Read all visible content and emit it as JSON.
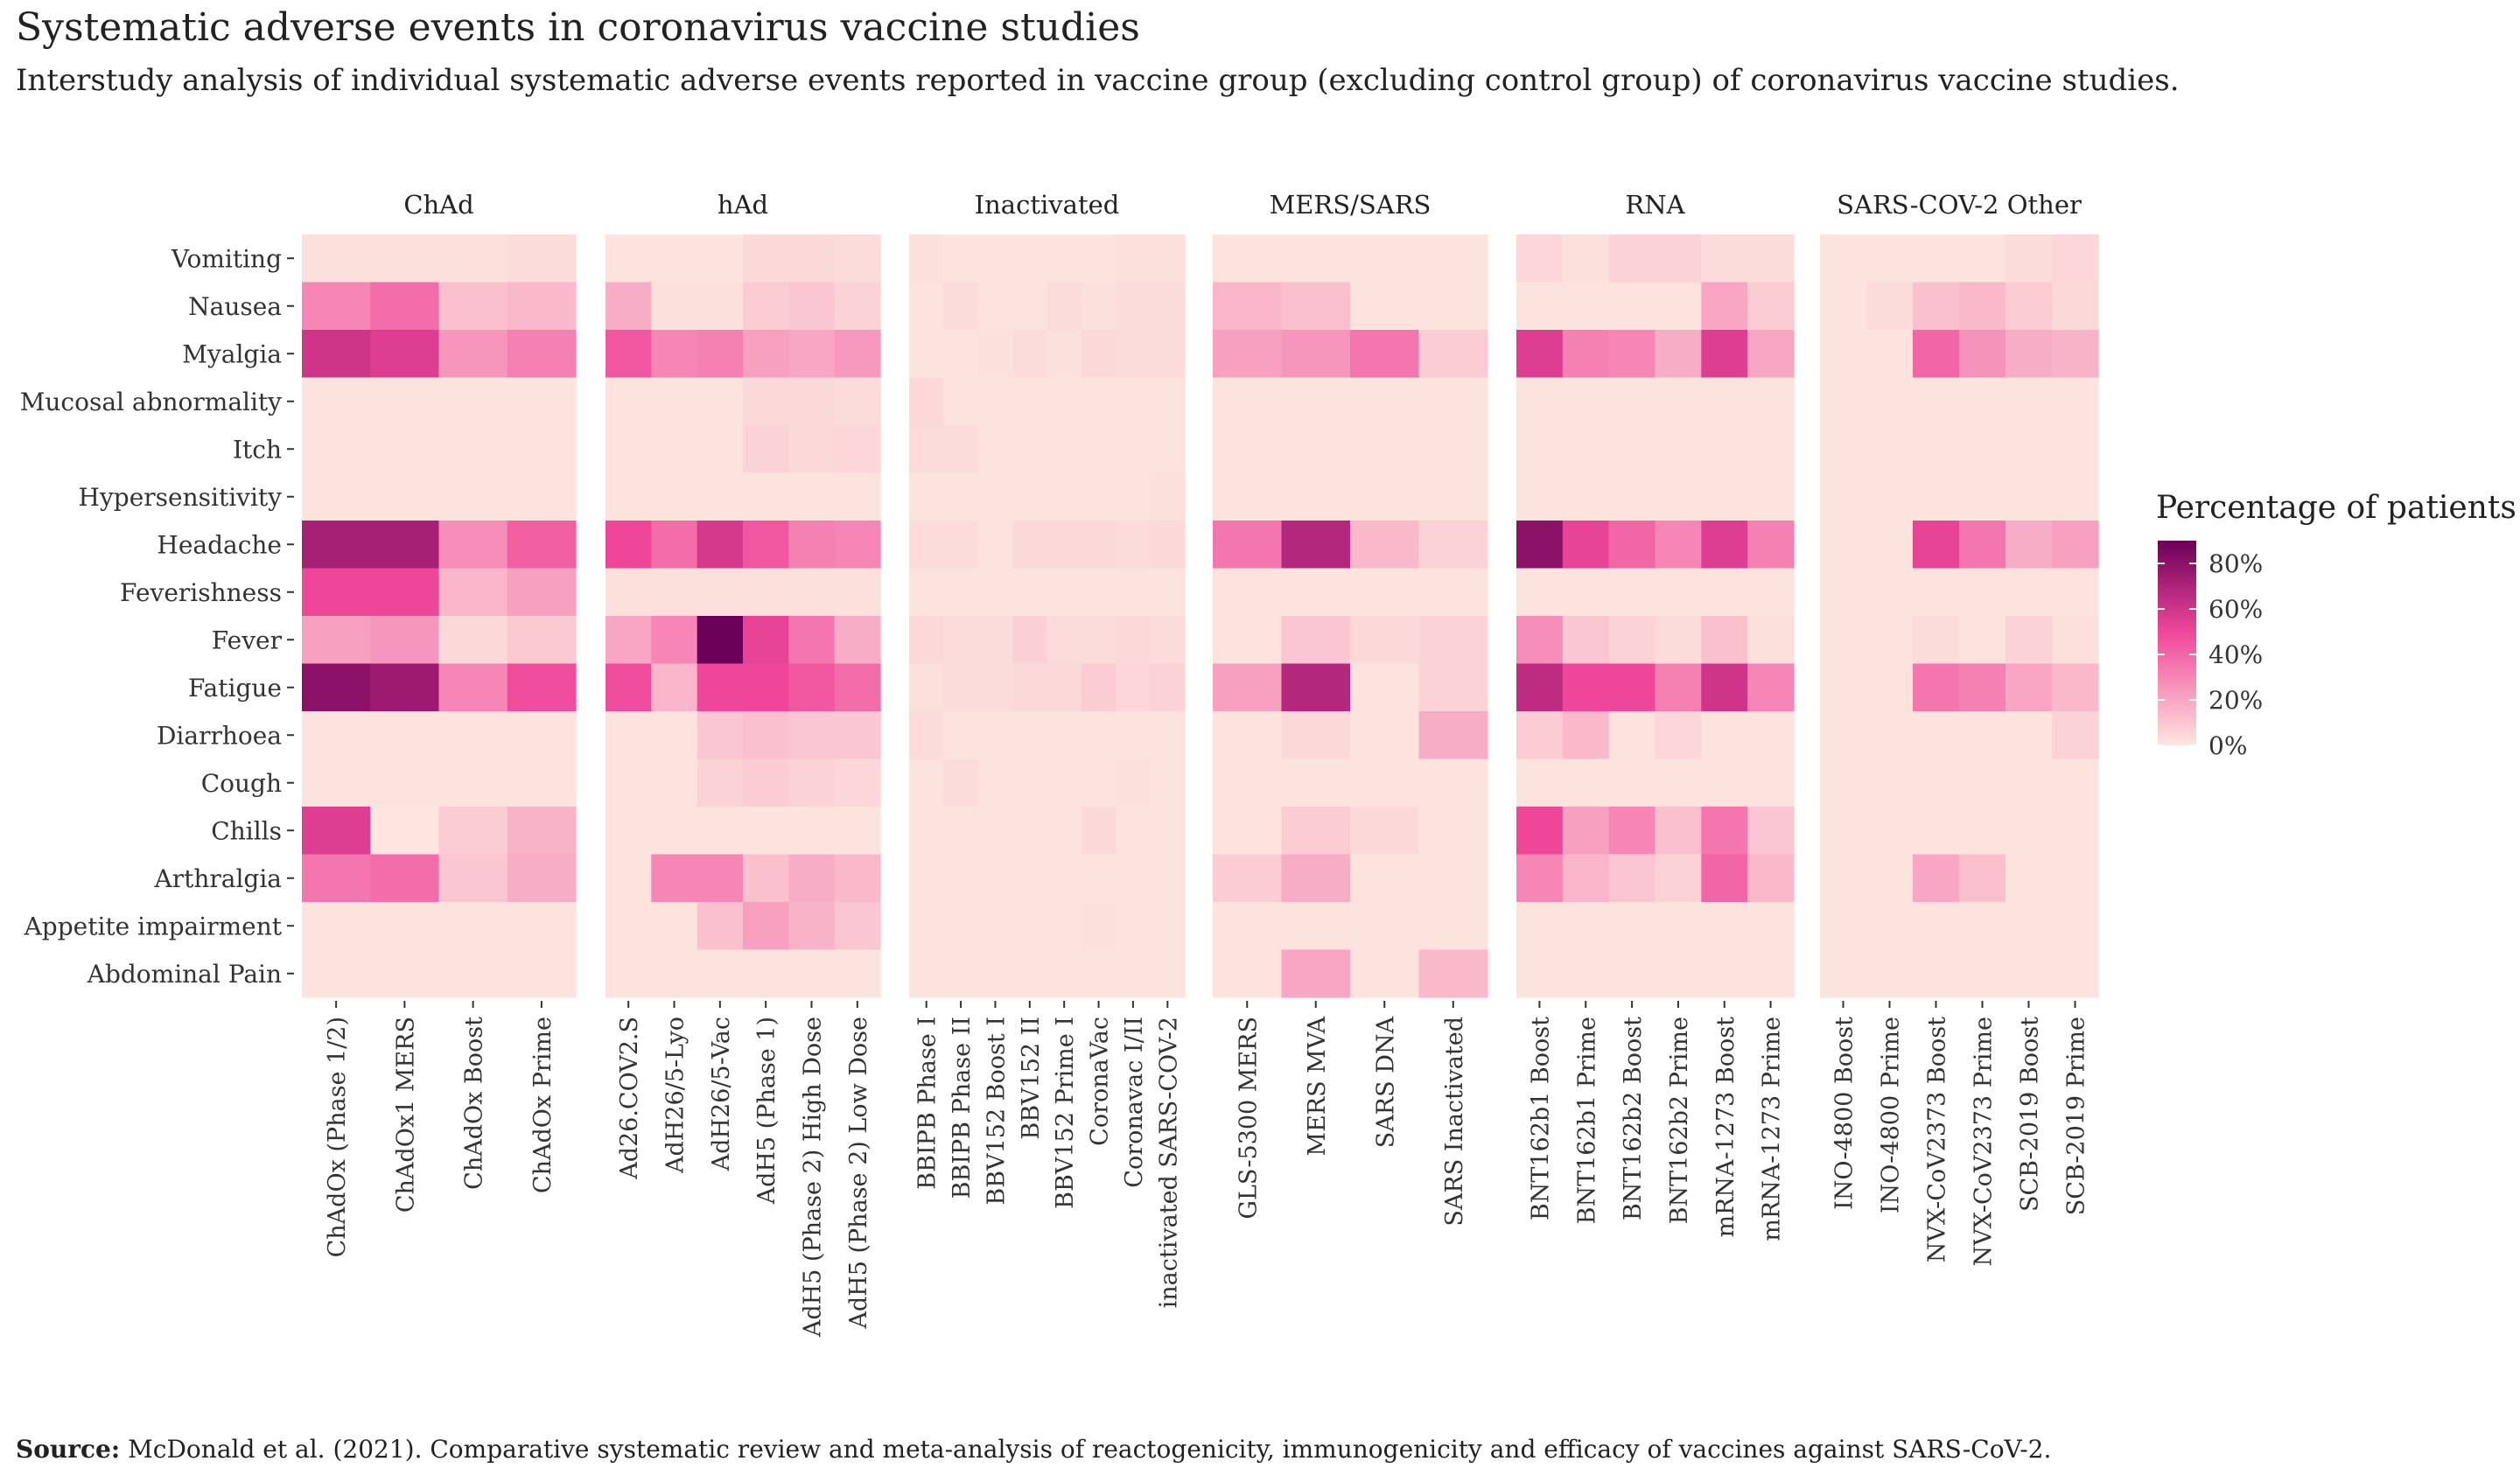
{
  "title": "Systematic adverse events in coronavirus vaccine studies",
  "subtitle": "Interstudy analysis of individual systematic adverse events reported in vaccine group (excluding control group) of coronavirus vaccine studies.",
  "caption_label": "Source:",
  "caption_text": "McDonald et al. (2021). Comparative systematic review and meta-analysis of reactogenicity, immunogenicity and efficacy of vaccines against SARS-CoV-2.",
  "chart_data": {
    "type": "heatmap",
    "rows": [
      "Vomiting",
      "Nausea",
      "Myalgia",
      "Mucosal abnormality",
      "Itch",
      "Hypersensitivity",
      "Headache",
      "Feverishness",
      "Fever",
      "Fatigue",
      "Diarrhoea",
      "Cough",
      "Chills",
      "Arthralgia",
      "Appetite impairment",
      "Abdominal Pain"
    ],
    "legend_title": "Percentage of patients",
    "legend_ticks": [
      "80%",
      "60%",
      "40%",
      "20%",
      "0%"
    ],
    "legend_values": [
      80,
      60,
      40,
      20,
      0
    ],
    "scale": {
      "min": 0,
      "max": 90,
      "low_color": "#fde6df",
      "mid_color": "#f0489a",
      "high_color": "#6b0058"
    },
    "panels": [
      {
        "name": "ChAd",
        "columns": [
          "ChAdOx (Phase 1/2)",
          "ChAdOx1 MERS",
          "ChAdOx Boost",
          "ChAdOx Prime"
        ],
        "values": [
          [
            2,
            2,
            2,
            3
          ],
          [
            30,
            38,
            12,
            14
          ],
          [
            60,
            55,
            25,
            32
          ],
          [
            1,
            1,
            1,
            1
          ],
          [
            1,
            1,
            1,
            1
          ],
          [
            1,
            1,
            1,
            1
          ],
          [
            72,
            72,
            28,
            42
          ],
          [
            50,
            50,
            15,
            22
          ],
          [
            22,
            25,
            4,
            9
          ],
          [
            80,
            75,
            30,
            48
          ],
          [
            1,
            1,
            1,
            1
          ],
          [
            1,
            1,
            1,
            1
          ],
          [
            55,
            0,
            8,
            16
          ],
          [
            35,
            38,
            10,
            18
          ],
          [
            1,
            1,
            1,
            1
          ],
          [
            1,
            1,
            1,
            1
          ]
        ]
      },
      {
        "name": "hAd",
        "columns": [
          "Ad26.COV2.S",
          "AdH26/5-Lyo",
          "AdH26/5-Vac",
          "AdH5 (Phase 1)",
          "AdH5 (Phase 2) High Dose",
          "AdH5 (Phase 2) Low Dose"
        ],
        "values": [
          [
            1,
            1,
            1,
            4,
            4,
            3
          ],
          [
            18,
            2,
            2,
            8,
            10,
            6
          ],
          [
            45,
            30,
            32,
            22,
            20,
            24
          ],
          [
            1,
            1,
            1,
            4,
            4,
            3
          ],
          [
            1,
            1,
            1,
            6,
            4,
            5
          ],
          [
            1,
            1,
            1,
            1,
            1,
            1
          ],
          [
            50,
            38,
            58,
            45,
            32,
            30
          ],
          [
            2,
            2,
            2,
            2,
            2,
            2
          ],
          [
            20,
            30,
            90,
            52,
            35,
            18
          ],
          [
            48,
            15,
            50,
            50,
            45,
            38
          ],
          [
            1,
            1,
            10,
            12,
            10,
            10
          ],
          [
            1,
            1,
            6,
            8,
            6,
            5
          ],
          [
            1,
            1,
            1,
            1,
            1,
            1
          ],
          [
            1,
            30,
            30,
            12,
            18,
            14
          ],
          [
            1,
            1,
            12,
            22,
            16,
            10
          ],
          [
            1,
            1,
            1,
            1,
            1,
            1
          ]
        ]
      },
      {
        "name": "Inactivated",
        "columns": [
          "BBIPB Phase I",
          "BBIPB Phase II",
          "BBV152 Boost I",
          "BBV152 II",
          "BBV152 Prime I",
          "CoronaVac",
          "Coronavac I/II",
          "inactivated SARS-COV-2"
        ],
        "values": [
          [
            2,
            1,
            1,
            1,
            1,
            1,
            2,
            2
          ],
          [
            1,
            3,
            1,
            1,
            3,
            2,
            3,
            3
          ],
          [
            1,
            1,
            2,
            3,
            2,
            4,
            3,
            3
          ],
          [
            4,
            1,
            1,
            1,
            1,
            1,
            1,
            1
          ],
          [
            3,
            3,
            1,
            1,
            1,
            1,
            1,
            1
          ],
          [
            1,
            1,
            1,
            1,
            1,
            1,
            1,
            2
          ],
          [
            3,
            3,
            1,
            4,
            4,
            4,
            3,
            4
          ],
          [
            1,
            1,
            1,
            1,
            1,
            1,
            1,
            1
          ],
          [
            4,
            3,
            3,
            7,
            3,
            3,
            4,
            3
          ],
          [
            2,
            3,
            3,
            4,
            4,
            8,
            5,
            6
          ],
          [
            3,
            1,
            1,
            1,
            1,
            1,
            1,
            1
          ],
          [
            1,
            3,
            1,
            1,
            1,
            1,
            2,
            1
          ],
          [
            1,
            1,
            1,
            1,
            1,
            4,
            1,
            1
          ],
          [
            1,
            1,
            1,
            1,
            1,
            1,
            1,
            1
          ],
          [
            1,
            1,
            1,
            1,
            1,
            2,
            1,
            1
          ],
          [
            1,
            1,
            1,
            1,
            1,
            1,
            1,
            1
          ]
        ]
      },
      {
        "name": "MERS/SARS",
        "columns": [
          "GLS-5300 MERS",
          "MERS MVA",
          "SARS DNA",
          "SARS Inactivated"
        ],
        "values": [
          [
            1,
            1,
            1,
            1
          ],
          [
            15,
            12,
            1,
            1
          ],
          [
            22,
            25,
            35,
            8
          ],
          [
            1,
            1,
            1,
            1
          ],
          [
            1,
            1,
            1,
            1
          ],
          [
            1,
            1,
            1,
            1
          ],
          [
            35,
            68,
            14,
            6
          ],
          [
            1,
            1,
            1,
            1
          ],
          [
            1,
            10,
            4,
            6
          ],
          [
            22,
            68,
            1,
            6
          ],
          [
            1,
            4,
            1,
            18
          ],
          [
            1,
            1,
            1,
            1
          ],
          [
            1,
            8,
            4,
            1
          ],
          [
            8,
            18,
            1,
            1
          ],
          [
            1,
            1,
            1,
            1
          ],
          [
            1,
            20,
            1,
            14
          ]
        ]
      },
      {
        "name": "RNA",
        "columns": [
          "BNT162b1 Boost",
          "BNT162b1 Prime",
          "BNT162b2 Boost",
          "BNT162b2 Prime",
          "mRNA-1273 Boost",
          "mRNA-1273 Prime"
        ],
        "values": [
          [
            5,
            2,
            6,
            6,
            3,
            3
          ],
          [
            1,
            1,
            1,
            1,
            20,
            8
          ],
          [
            55,
            32,
            30,
            18,
            55,
            20
          ],
          [
            1,
            1,
            1,
            1,
            1,
            1
          ],
          [
            1,
            1,
            1,
            1,
            1,
            1
          ],
          [
            1,
            1,
            1,
            1,
            1,
            1
          ],
          [
            80,
            52,
            40,
            30,
            55,
            32
          ],
          [
            1,
            1,
            1,
            1,
            1,
            1
          ],
          [
            28,
            10,
            6,
            3,
            12,
            2
          ],
          [
            65,
            50,
            50,
            32,
            60,
            30
          ],
          [
            8,
            14,
            1,
            5,
            1,
            1
          ],
          [
            1,
            1,
            1,
            1,
            1,
            1
          ],
          [
            50,
            22,
            30,
            12,
            35,
            10
          ],
          [
            30,
            15,
            10,
            6,
            40,
            14
          ],
          [
            1,
            1,
            1,
            1,
            1,
            1
          ],
          [
            1,
            1,
            1,
            1,
            1,
            1
          ]
        ]
      },
      {
        "name": "SARS-COV-2 Other",
        "columns": [
          "INO-4800 Boost",
          "INO-4800 Prime",
          "NVX-CoV2373 Boost",
          "NVX-CoV2373 Prime",
          "SCB-2019 Boost",
          "SCB-2019 Prime"
        ],
        "values": [
          [
            1,
            1,
            1,
            1,
            3,
            5
          ],
          [
            1,
            3,
            12,
            14,
            8,
            4
          ],
          [
            1,
            1,
            40,
            26,
            18,
            16
          ],
          [
            1,
            1,
            1,
            1,
            1,
            1
          ],
          [
            1,
            1,
            1,
            1,
            1,
            1
          ],
          [
            1,
            1,
            1,
            1,
            1,
            1
          ],
          [
            1,
            1,
            52,
            35,
            18,
            22
          ],
          [
            1,
            1,
            1,
            1,
            1,
            1
          ],
          [
            1,
            1,
            3,
            1,
            6,
            2
          ],
          [
            1,
            1,
            35,
            32,
            20,
            14
          ],
          [
            1,
            1,
            1,
            1,
            1,
            6
          ],
          [
            1,
            1,
            1,
            1,
            1,
            1
          ],
          [
            1,
            1,
            1,
            1,
            1,
            1
          ],
          [
            1,
            1,
            20,
            12,
            1,
            1
          ],
          [
            1,
            1,
            1,
            1,
            1,
            1
          ],
          [
            1,
            1,
            1,
            1,
            1,
            1
          ]
        ]
      }
    ]
  }
}
